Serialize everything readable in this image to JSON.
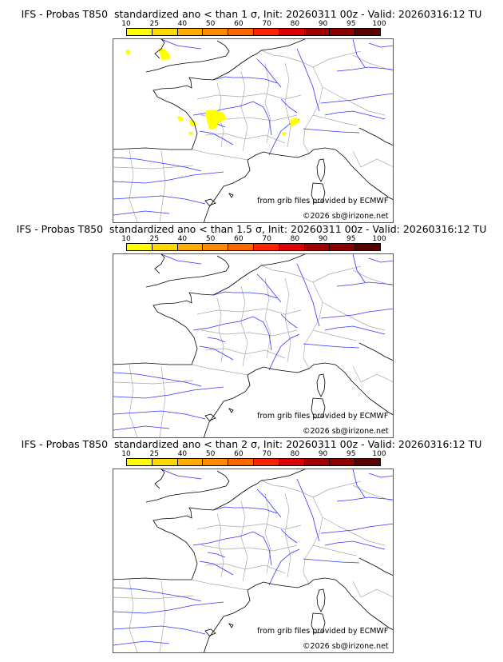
{
  "colorbar": {
    "ticks": [
      "10",
      "25",
      "40",
      "50",
      "60",
      "70",
      "80",
      "90",
      "95",
      "100"
    ],
    "colors": [
      "#ffff00",
      "#ffd700",
      "#ffad00",
      "#ff8c00",
      "#ff6600",
      "#ff2200",
      "#dd0000",
      "#a00000",
      "#8b0000",
      "#5a0000"
    ]
  },
  "panels": [
    {
      "title": "IFS - Probas T850  standardized ano < than 1 σ, Init: 20260311 00z - Valid: 20260316:12 TU",
      "has_signal": true
    },
    {
      "title": "IFS - Probas T850  standardized ano < than 1.5 σ, Init: 20260311 00z - Valid: 20260316:12 TU",
      "has_signal": false
    },
    {
      "title": "IFS - Probas T850  standardized ano < than 2 σ, Init: 20260311 00z - Valid: 20260316:12 TU",
      "has_signal": false
    }
  ],
  "credits": {
    "source": "from grib files provided by ECMWF",
    "copyright": "©2026 sb@irizone.net"
  },
  "map_colors": {
    "coast": "#000000",
    "rivers": "#3333ff",
    "borders": "#aaaaaa",
    "signal": "#ffff00"
  }
}
